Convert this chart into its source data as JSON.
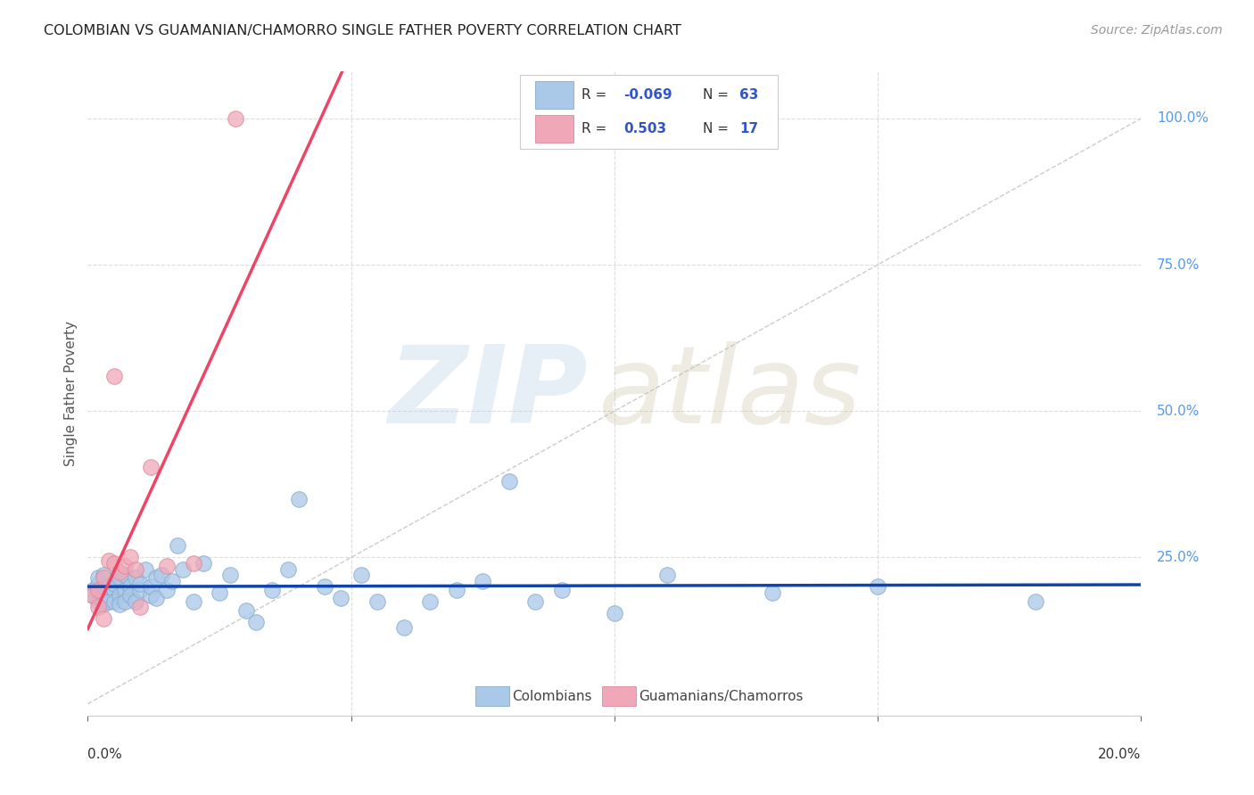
{
  "title": "COLOMBIAN VS GUAMANIAN/CHAMORRO SINGLE FATHER POVERTY CORRELATION CHART",
  "source": "Source: ZipAtlas.com",
  "ylabel": "Single Father Poverty",
  "xmin": 0.0,
  "xmax": 0.2,
  "ymin": -0.02,
  "ymax": 1.08,
  "blue_color": "#aac8e8",
  "blue_edge_color": "#88aacc",
  "blue_line_color": "#1144aa",
  "pink_color": "#f0a8b8",
  "pink_edge_color": "#dd8899",
  "pink_line_color": "#ee4466",
  "diagonal_color": "#cccccc",
  "grid_color": "#dddddd",
  "legend_R_color": "#3355cc",
  "right_label_color": "#5599ee",
  "right_ytick_positions": [
    0.25,
    0.5,
    0.75,
    1.0
  ],
  "right_ytick_labels": [
    "25.0%",
    "50.0%",
    "75.0%",
    "100.0%"
  ],
  "scatter_blue_x": [
    0.001,
    0.001,
    0.002,
    0.002,
    0.002,
    0.003,
    0.003,
    0.003,
    0.003,
    0.004,
    0.004,
    0.004,
    0.005,
    0.005,
    0.005,
    0.005,
    0.006,
    0.006,
    0.006,
    0.007,
    0.007,
    0.007,
    0.008,
    0.008,
    0.009,
    0.009,
    0.01,
    0.01,
    0.011,
    0.012,
    0.012,
    0.013,
    0.013,
    0.014,
    0.015,
    0.016,
    0.017,
    0.018,
    0.02,
    0.022,
    0.025,
    0.027,
    0.03,
    0.032,
    0.035,
    0.038,
    0.04,
    0.045,
    0.048,
    0.052,
    0.055,
    0.06,
    0.065,
    0.07,
    0.075,
    0.08,
    0.085,
    0.09,
    0.1,
    0.11,
    0.13,
    0.15,
    0.18
  ],
  "scatter_blue_y": [
    0.195,
    0.185,
    0.205,
    0.175,
    0.215,
    0.19,
    0.17,
    0.2,
    0.22,
    0.185,
    0.175,
    0.2,
    0.21,
    0.195,
    0.175,
    0.205,
    0.185,
    0.17,
    0.215,
    0.195,
    0.22,
    0.175,
    0.2,
    0.185,
    0.215,
    0.175,
    0.195,
    0.205,
    0.23,
    0.185,
    0.2,
    0.215,
    0.18,
    0.22,
    0.195,
    0.21,
    0.27,
    0.23,
    0.175,
    0.24,
    0.19,
    0.22,
    0.16,
    0.14,
    0.195,
    0.23,
    0.35,
    0.2,
    0.18,
    0.22,
    0.175,
    0.13,
    0.175,
    0.195,
    0.21,
    0.38,
    0.175,
    0.195,
    0.155,
    0.22,
    0.19,
    0.2,
    0.175
  ],
  "scatter_pink_x": [
    0.001,
    0.002,
    0.002,
    0.003,
    0.003,
    0.004,
    0.005,
    0.005,
    0.006,
    0.007,
    0.008,
    0.009,
    0.01,
    0.012,
    0.015,
    0.02,
    0.028
  ],
  "scatter_pink_y": [
    0.185,
    0.195,
    0.165,
    0.215,
    0.145,
    0.245,
    0.56,
    0.24,
    0.225,
    0.235,
    0.25,
    0.23,
    0.165,
    0.405,
    0.235,
    0.24,
    1.0
  ],
  "pink_line_x_start": 0.0,
  "pink_line_x_end": 0.095,
  "blue_line_x_start": 0.0,
  "blue_line_x_end": 0.2
}
